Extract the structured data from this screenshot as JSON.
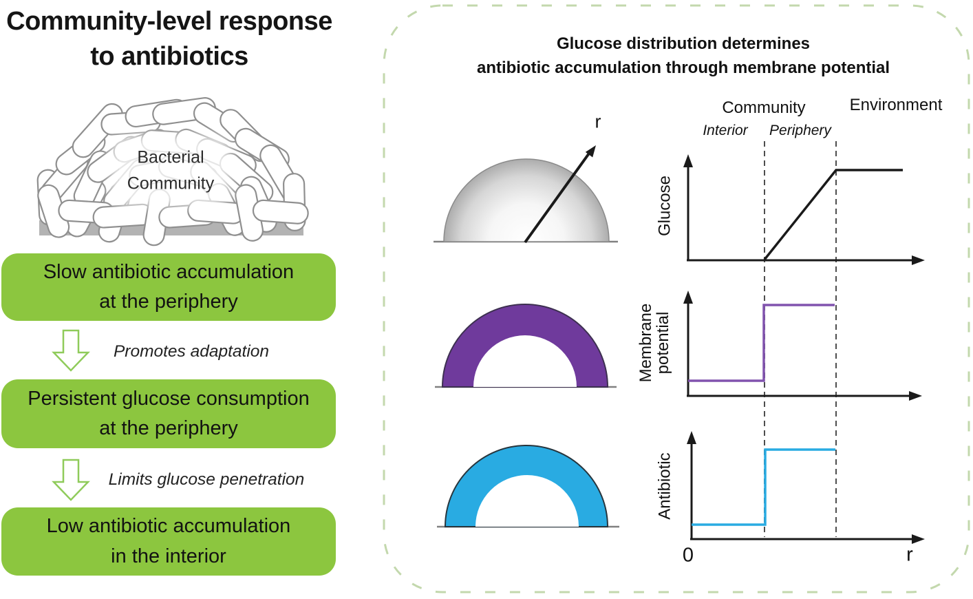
{
  "colors": {
    "box_green": "#8CC63F",
    "arrow_green": "#8FCB5A",
    "panel_border_green": "#C3D8AD",
    "purple": "#6F3A9C",
    "purple_line": "#8153AE",
    "blue": "#29ABE2",
    "axis_black": "#1A1A1A",
    "substrate_gray": "#B3B3B3"
  },
  "left_panel": {
    "title": {
      "line1": "Community-level response",
      "line2": "to antibiotics"
    },
    "community_illustration": {
      "label_line1": "Bacterial",
      "label_line2": "Community"
    },
    "flow": {
      "box1": {
        "line1": "Slow antibiotic accumulation",
        "line2": "at the periphery"
      },
      "arrow1_caption": "Promotes adaptation",
      "box2": {
        "line1": "Persistent glucose consumption",
        "line2": "at the periphery"
      },
      "arrow2_caption": "Limits glucose penetration",
      "box3": {
        "line1": "Low antibiotic accumulation",
        "line2": "in the interior"
      }
    }
  },
  "right_panel": {
    "title": {
      "line1": "Glucose distribution determines",
      "line2": "antibiotic accumulation through membrane potential"
    },
    "region_labels": {
      "community": "Community",
      "interior": "Interior",
      "periphery": "Periphery",
      "environment": "Environment"
    },
    "dome_axis_label": "r",
    "plots": {
      "glucose_ylabel": "Glucose",
      "membrane_ylabel_line1": "Membrane",
      "membrane_ylabel_line2": "potential",
      "antibiotic_ylabel": "Antibiotic",
      "x_origin_label": "0",
      "x_axis_label": "r"
    }
  },
  "chart_data": [
    {
      "type": "line",
      "title": "Glucose vs r",
      "ylabel": "Glucose",
      "xlabel": "r",
      "x_regions": [
        "Interior",
        "Periphery",
        "Environment"
      ],
      "x": [
        0,
        0.33,
        0.64,
        0.93
      ],
      "y": [
        0,
        0,
        1,
        1
      ],
      "description": "Zero in community interior, linear rise across periphery, constant high plateau in environment"
    },
    {
      "type": "line",
      "title": "Membrane potential vs r",
      "ylabel": "Membrane potential",
      "xlabel": "r",
      "x_regions": [
        "Interior",
        "Periphery"
      ],
      "x": [
        0,
        0.33,
        0.33,
        0.64
      ],
      "y": [
        0.15,
        0.15,
        1,
        1
      ],
      "description": "Low in interior, step up to high at interior/periphery boundary, high through periphery"
    },
    {
      "type": "line",
      "title": "Antibiotic vs r",
      "ylabel": "Antibiotic",
      "xlabel": "r",
      "x_regions": [
        "Interior",
        "Periphery"
      ],
      "x": [
        0,
        0.33,
        0.33,
        0.64
      ],
      "y": [
        0.15,
        0.15,
        1,
        1
      ],
      "description": "Low antibiotic accumulation in interior, step up to high in periphery"
    }
  ]
}
